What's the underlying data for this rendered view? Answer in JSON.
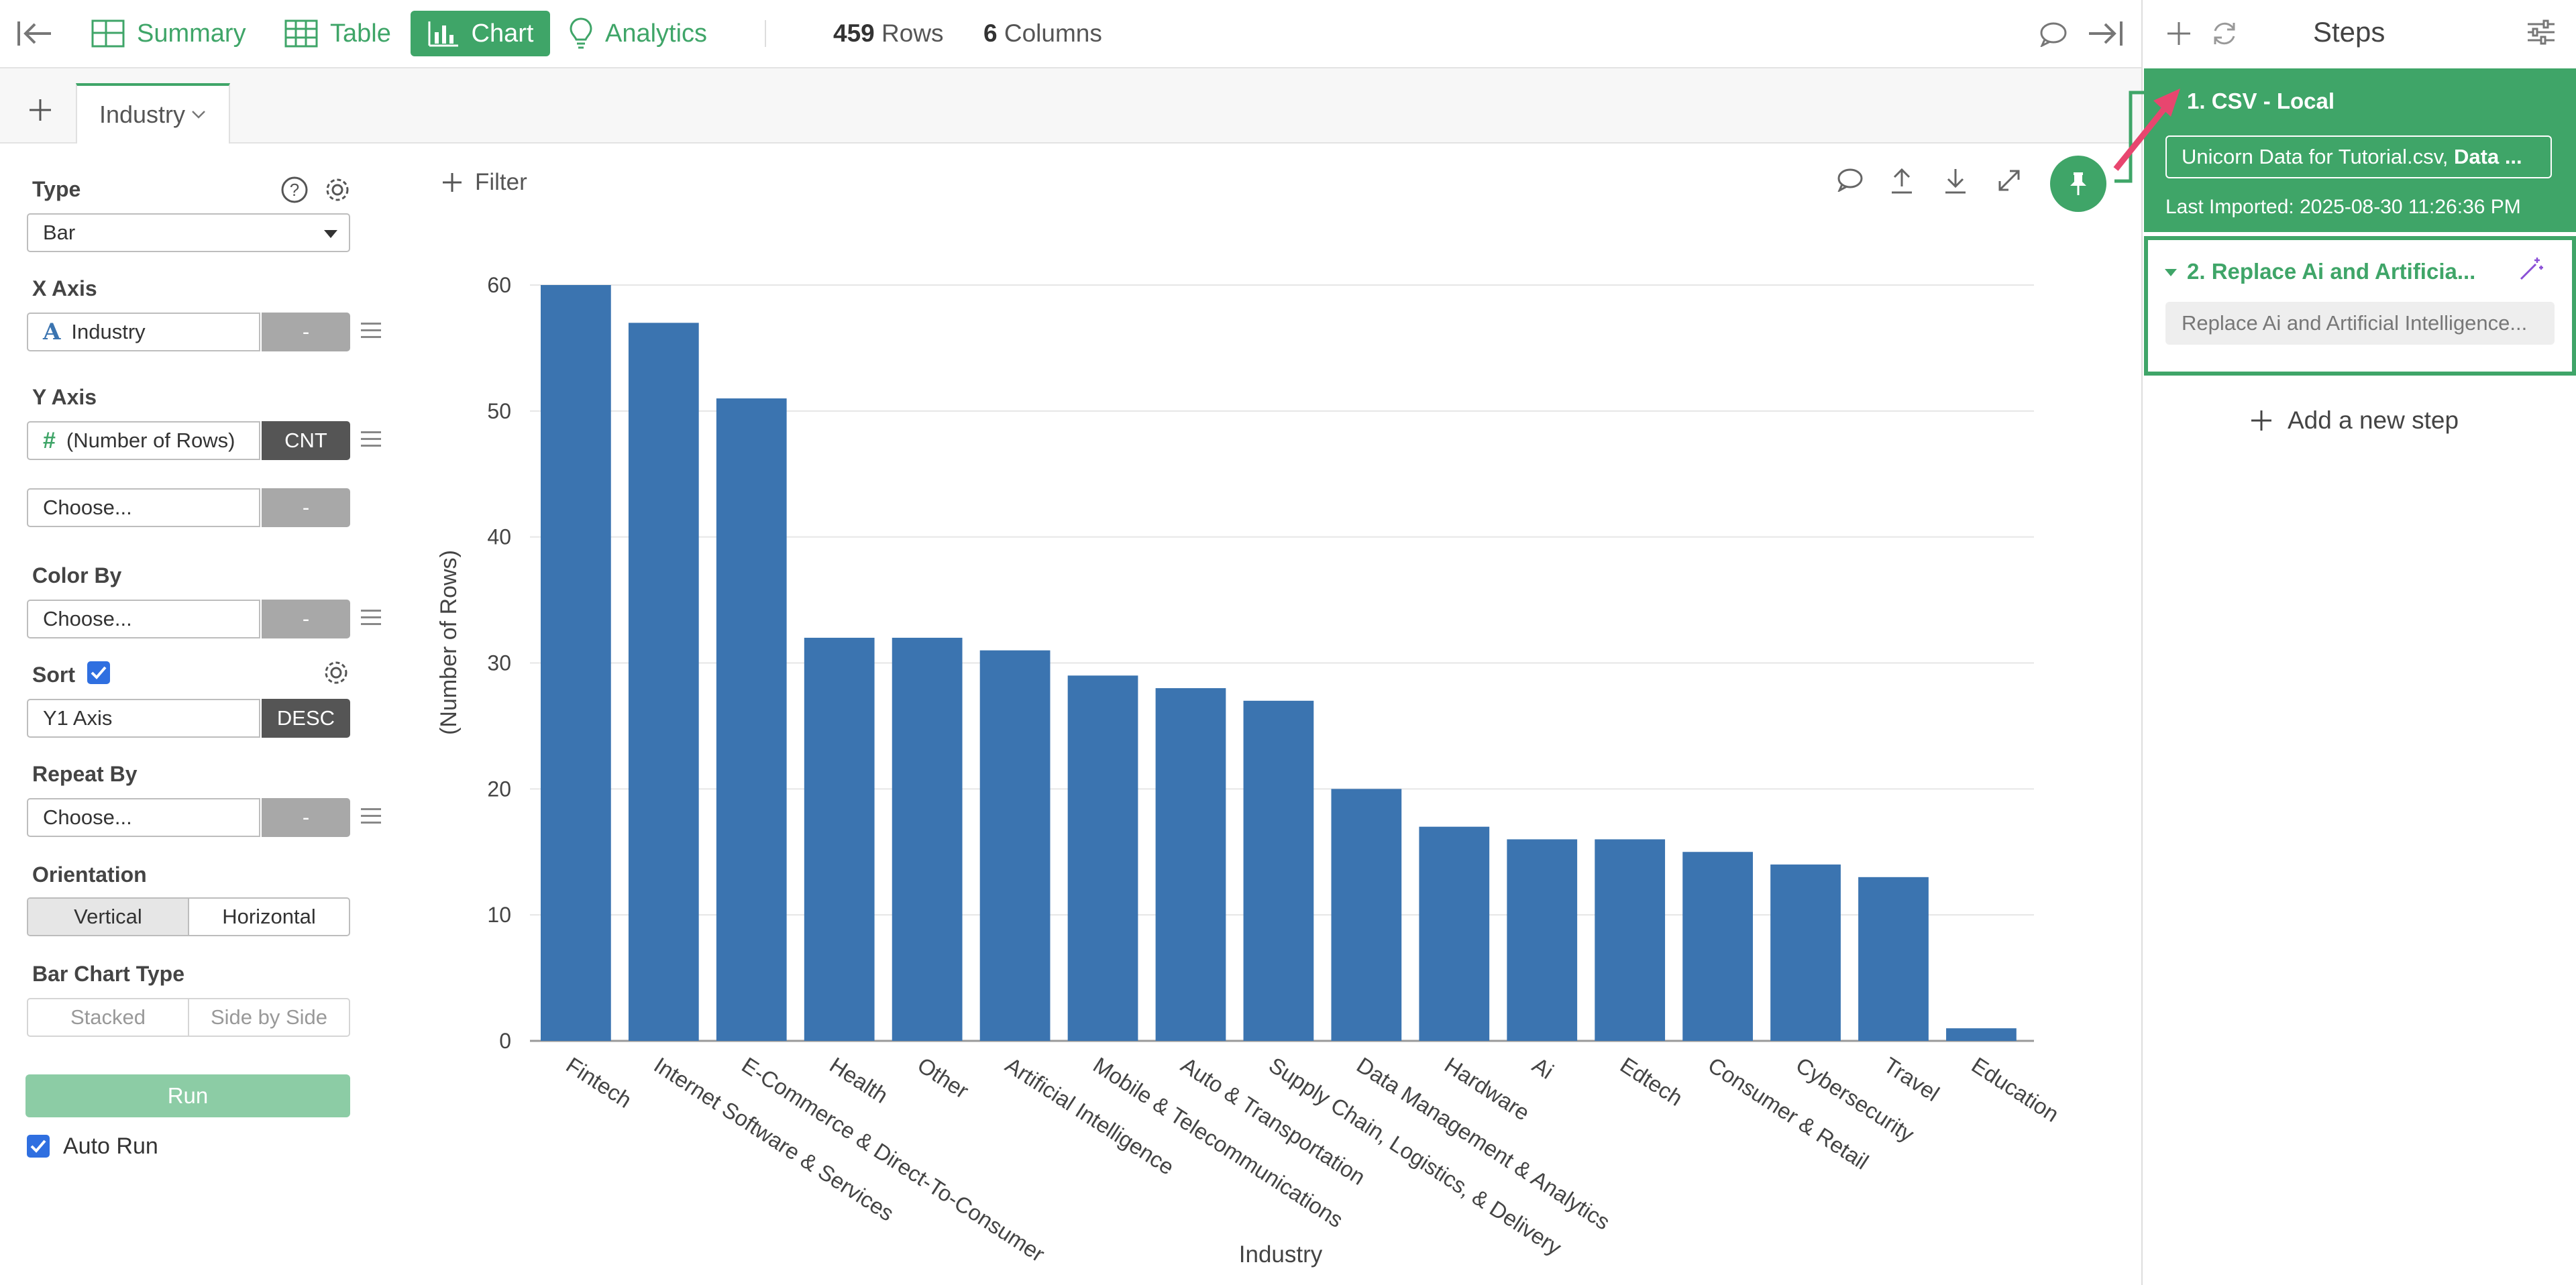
{
  "topbar": {
    "tabs": [
      {
        "label": "Summary",
        "icon": "summary-grid-icon"
      },
      {
        "label": "Table",
        "icon": "table-icon"
      },
      {
        "label": "Chart",
        "icon": "bar-chart-icon",
        "active": true
      },
      {
        "label": "Analytics",
        "icon": "lightbulb-icon"
      }
    ],
    "rows_count": "459",
    "rows_label": "Rows",
    "columns_count": "6",
    "columns_label": "Columns"
  },
  "chart_tabs": {
    "active_tab": "Industry"
  },
  "config": {
    "type_label": "Type",
    "type_value": "Bar",
    "x_axis_label": "X Axis",
    "x_axis_field": "Industry",
    "x_axis_agg": "-",
    "y_axis_label": "Y Axis",
    "y_axis_field": "(Number of Rows)",
    "y_axis_agg": "CNT",
    "y2_field": "Choose...",
    "y2_agg": "-",
    "color_by_label": "Color By",
    "color_by_field": "Choose...",
    "color_by_agg": "-",
    "sort_label": "Sort",
    "sort_checked": true,
    "sort_field": "Y1 Axis",
    "sort_order": "DESC",
    "repeat_by_label": "Repeat By",
    "repeat_by_field": "Choose...",
    "repeat_by_agg": "-",
    "orientation_label": "Orientation",
    "orientation_options": [
      "Vertical",
      "Horizontal"
    ],
    "orientation_selected": "Vertical",
    "bar_chart_type_label": "Bar Chart Type",
    "bar_chart_type_options": [
      "Stacked",
      "Side by Side"
    ],
    "run_label": "Run",
    "auto_run_label": "Auto Run",
    "auto_run_checked": true
  },
  "filter_label": "Filter",
  "chart_data": {
    "type": "bar",
    "categories": [
      "Fintech",
      "Internet Software & Services",
      "E-Commerce & Direct-To-Consumer",
      "Health",
      "Other",
      "Artificial Intelligence",
      "Mobile & Telecommunications",
      "Auto & Transportation",
      "Supply Chain, Logistics, & Delivery",
      "Data Management & Analytics",
      "Hardware",
      "Ai",
      "Edtech",
      "Consumer & Retail",
      "Cybersecurity",
      "Travel",
      "Education"
    ],
    "values": [
      60,
      57,
      51,
      32,
      32,
      31,
      29,
      28,
      27,
      20,
      17,
      16,
      16,
      15,
      14,
      13,
      1
    ],
    "xlabel": "Industry",
    "ylabel": "(Number of Rows)",
    "ylim": [
      0,
      60
    ],
    "yticks": [
      0,
      10,
      20,
      30,
      40,
      50,
      60
    ],
    "bar_color": "#3b74b0",
    "grid": true
  },
  "steps": {
    "title": "Steps",
    "step1": {
      "title": "1. CSV - Local",
      "detail_file": "Unicorn Data for Tutorial.csv, ",
      "detail_bold": "Data ...",
      "last_imported": "Last Imported: 2025-08-30 11:26:36 PM"
    },
    "step2": {
      "title": "2. Replace Ai and Artificia...",
      "detail": "Replace Ai and Artificial Intelligence..."
    },
    "add_step_label": "Add a new step"
  },
  "colors": {
    "accent": "#3fa568",
    "bar": "#3b74b0",
    "annotation_arrow": "#e8466f"
  }
}
